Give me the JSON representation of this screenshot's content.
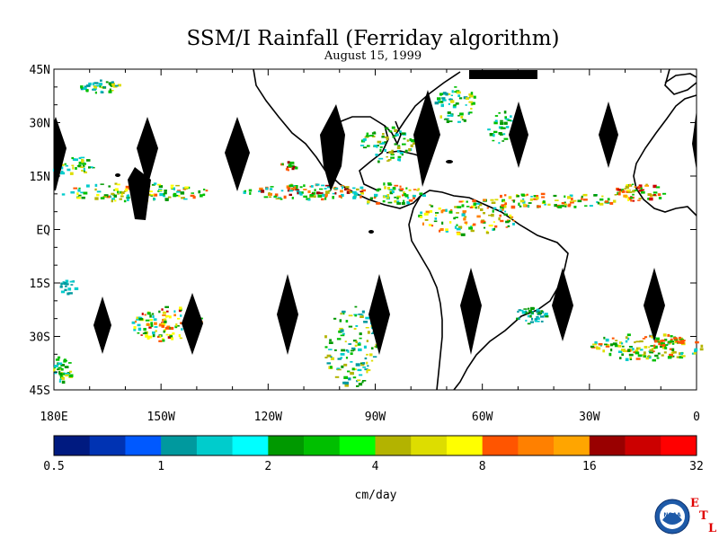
{
  "title": "SSM/I Rainfall (Ferriday algorithm)",
  "date": "August 15, 1999",
  "map": {
    "lat_ticks": [
      "45N",
      "30N",
      "15N",
      "EQ",
      "15S",
      "30S",
      "45S"
    ],
    "lat_values": [
      45,
      30,
      15,
      0,
      -15,
      -30,
      -45
    ],
    "lon_ticks": [
      "180E",
      "150W",
      "120W",
      "90W",
      "60W",
      "30W",
      "0"
    ],
    "lon_values": [
      -180,
      -150,
      -120,
      -90,
      -60,
      -30,
      0
    ],
    "extent": {
      "lon": [
        -180,
        0
      ],
      "lat": [
        -45,
        45
      ]
    }
  },
  "colorbar": {
    "unit": "cm/day",
    "labels": [
      "0.5",
      "1",
      "2",
      "4",
      "8",
      "16",
      "32"
    ],
    "colors": [
      "#001a80",
      "#0033b3",
      "#0059ff",
      "#00999e",
      "#00cccc",
      "#00ffff",
      "#009900",
      "#00bf00",
      "#00ff00",
      "#b3b300",
      "#dddd00",
      "#ffff00",
      "#ff5500",
      "#ff8000",
      "#ffa500",
      "#990000",
      "#cc0000",
      "#ff0000"
    ]
  },
  "logo": {
    "noaa_text": "NOAA",
    "etl_letters": [
      "E",
      "T",
      "L"
    ]
  }
}
